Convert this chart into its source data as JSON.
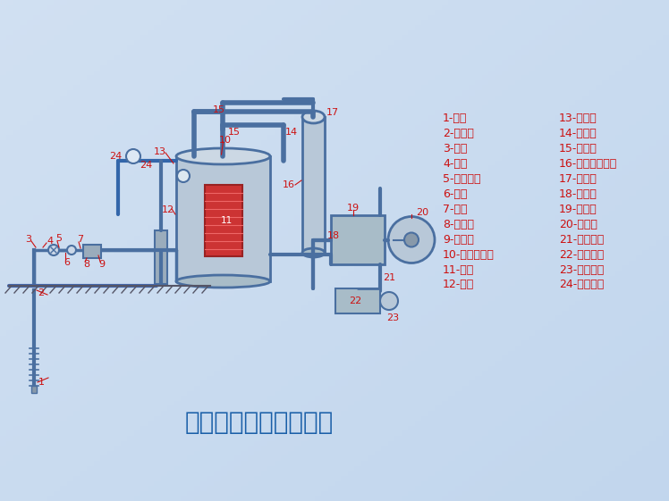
{
  "title": "轻型井点设备工作原理",
  "title_color": "#1a5fa8",
  "title_fontsize": 20,
  "legend_color": "#cc1111",
  "legend_fontsize": 9,
  "legend_left": [
    "1-滤管",
    "2-井点管",
    "3-弯管",
    "4-阀门",
    "5-集水总管",
    "6-阀门",
    "7-滤管",
    "8-过滤箱",
    "9-海砂孔",
    "10-水气分离器",
    "11-浮筒",
    "12-阀门"
  ],
  "legend_right": [
    "13-真空计",
    "14-进水管",
    "15-真空计",
    "16-副水气分离器",
    "17-挡水板",
    "18-放水孔",
    "19-真空泵",
    "20-电动机",
    "21-冷却水管",
    "22-冷却水箱",
    "23-循环水泵",
    "24-离心水泵"
  ],
  "pipe_color": "#4a6fa0",
  "pipe_lw": 2.5,
  "tank_fc": "#b8c8d8",
  "tank_ec": "#4a6fa0"
}
